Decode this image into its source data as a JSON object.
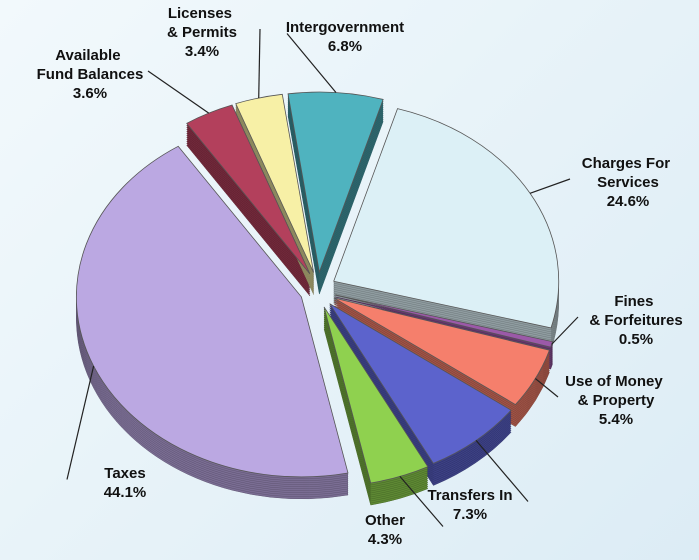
{
  "chart_data": {
    "type": "pie",
    "categories": [
      "Intergovernment",
      "Charges For Services",
      "Fines & Forfeitures",
      "Use of Money & Property",
      "Transfers In",
      "Other",
      "Taxes",
      "Available Fund Balances",
      "Licenses & Permits"
    ],
    "values": [
      6.8,
      24.6,
      0.5,
      5.4,
      7.3,
      4.3,
      44.1,
      3.6,
      3.4
    ],
    "value_labels": [
      "6.8%",
      "24.6%",
      "0.5%",
      "5.4%",
      "7.3%",
      "4.3%",
      "44.1%",
      "3.6%",
      "3.4%"
    ],
    "colors": [
      "#4fb3bf",
      "#dcf0f6",
      "#9b59a8",
      "#f57f6c",
      "#5c63cc",
      "#8fd14f",
      "#bba8e2",
      "#b3405c",
      "#f7f0a6"
    ]
  }
}
